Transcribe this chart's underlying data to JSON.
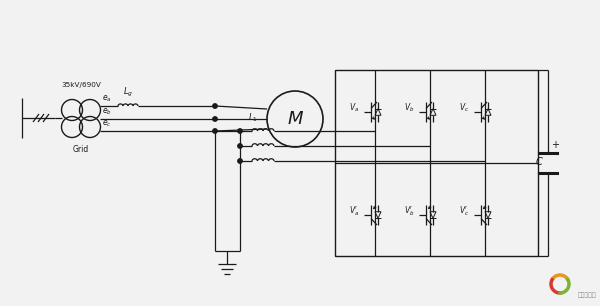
{
  "bg_color": "#f2f2f2",
  "line_color": "#1a1a1a",
  "voltage_label": "35kV/690V",
  "grid_label": "Grid",
  "motor_label": "M",
  "Lg_label": "L_g",
  "L1_label": "L_1",
  "ea_label": "e_a",
  "eb_label": "e_b",
  "ec_label": "e_c",
  "Va_label": "V_a",
  "Vb_label": "V_b",
  "Vc_label": "V_c",
  "Va2_label": "V_a'",
  "Vb2_label": "V_b'",
  "Vc2_label": "V_c'",
  "C_label": "C",
  "watermark": "国际能源网",
  "logo_colors": [
    "#e8961e",
    "#d63b2f",
    "#7ab432"
  ]
}
